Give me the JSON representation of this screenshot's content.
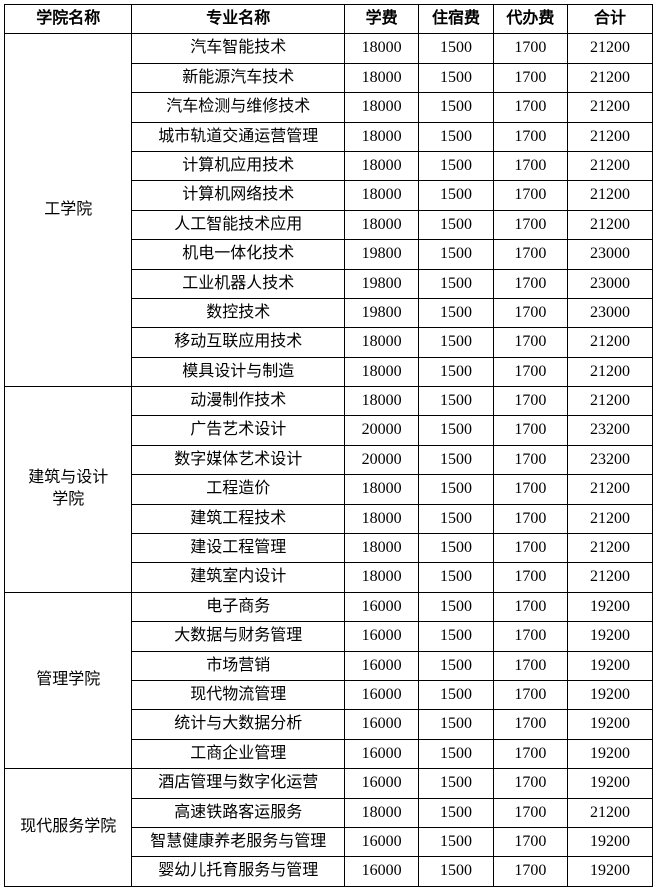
{
  "headers": {
    "college": "学院名称",
    "major": "专业名称",
    "tuition": "学费",
    "dorm": "住宿费",
    "agency": "代办费",
    "total": "合计"
  },
  "colleges": [
    {
      "name": "工学院",
      "rows": [
        {
          "major": "汽车智能技术",
          "tuition": "18000",
          "dorm": "1500",
          "agency": "1700",
          "total": "21200"
        },
        {
          "major": "新能源汽车技术",
          "tuition": "18000",
          "dorm": "1500",
          "agency": "1700",
          "total": "21200"
        },
        {
          "major": "汽车检测与维修技术",
          "tuition": "18000",
          "dorm": "1500",
          "agency": "1700",
          "total": "21200"
        },
        {
          "major": "城市轨道交通运营管理",
          "tuition": "18000",
          "dorm": "1500",
          "agency": "1700",
          "total": "21200"
        },
        {
          "major": "计算机应用技术",
          "tuition": "18000",
          "dorm": "1500",
          "agency": "1700",
          "total": "21200"
        },
        {
          "major": "计算机网络技术",
          "tuition": "18000",
          "dorm": "1500",
          "agency": "1700",
          "total": "21200"
        },
        {
          "major": "人工智能技术应用",
          "tuition": "18000",
          "dorm": "1500",
          "agency": "1700",
          "total": "21200"
        },
        {
          "major": "机电一体化技术",
          "tuition": "19800",
          "dorm": "1500",
          "agency": "1700",
          "total": "23000"
        },
        {
          "major": "工业机器人技术",
          "tuition": "19800",
          "dorm": "1500",
          "agency": "1700",
          "total": "23000"
        },
        {
          "major": "数控技术",
          "tuition": "19800",
          "dorm": "1500",
          "agency": "1700",
          "total": "23000"
        },
        {
          "major": "移动互联应用技术",
          "tuition": "18000",
          "dorm": "1500",
          "agency": "1700",
          "total": "21200"
        },
        {
          "major": "模具设计与制造",
          "tuition": "18000",
          "dorm": "1500",
          "agency": "1700",
          "total": "21200"
        }
      ]
    },
    {
      "name": "建筑与设计学院",
      "rows": [
        {
          "major": "动漫制作技术",
          "tuition": "18000",
          "dorm": "1500",
          "agency": "1700",
          "total": "21200"
        },
        {
          "major": "广告艺术设计",
          "tuition": "20000",
          "dorm": "1500",
          "agency": "1700",
          "total": "23200"
        },
        {
          "major": "数字媒体艺术设计",
          "tuition": "20000",
          "dorm": "1500",
          "agency": "1700",
          "total": "23200"
        },
        {
          "major": "工程造价",
          "tuition": "18000",
          "dorm": "1500",
          "agency": "1700",
          "total": "21200"
        },
        {
          "major": "建筑工程技术",
          "tuition": "18000",
          "dorm": "1500",
          "agency": "1700",
          "total": "21200"
        },
        {
          "major": "建设工程管理",
          "tuition": "18000",
          "dorm": "1500",
          "agency": "1700",
          "total": "21200"
        },
        {
          "major": "建筑室内设计",
          "tuition": "18000",
          "dorm": "1500",
          "agency": "1700",
          "total": "21200"
        }
      ]
    },
    {
      "name": "管理学院",
      "rows": [
        {
          "major": "电子商务",
          "tuition": "16000",
          "dorm": "1500",
          "agency": "1700",
          "total": "19200"
        },
        {
          "major": "大数据与财务管理",
          "tuition": "16000",
          "dorm": "1500",
          "agency": "1700",
          "total": "19200"
        },
        {
          "major": "市场营销",
          "tuition": "16000",
          "dorm": "1500",
          "agency": "1700",
          "total": "19200"
        },
        {
          "major": "现代物流管理",
          "tuition": "16000",
          "dorm": "1500",
          "agency": "1700",
          "total": "19200"
        },
        {
          "major": "统计与大数据分析",
          "tuition": "16000",
          "dorm": "1500",
          "agency": "1700",
          "total": "19200"
        },
        {
          "major": "工商企业管理",
          "tuition": "16000",
          "dorm": "1500",
          "agency": "1700",
          "total": "19200"
        }
      ]
    },
    {
      "name": "现代服务学院",
      "rows": [
        {
          "major": "酒店管理与数字化运营",
          "tuition": "16000",
          "dorm": "1500",
          "agency": "1700",
          "total": "19200"
        },
        {
          "major": "高速铁路客运服务",
          "tuition": "18000",
          "dorm": "1500",
          "agency": "1700",
          "total": "21200"
        },
        {
          "major": "智慧健康养老服务与管理",
          "tuition": "16000",
          "dorm": "1500",
          "agency": "1700",
          "total": "19200"
        },
        {
          "major": "婴幼儿托育服务与管理",
          "tuition": "16000",
          "dorm": "1500",
          "agency": "1700",
          "total": "19200"
        }
      ]
    }
  ]
}
